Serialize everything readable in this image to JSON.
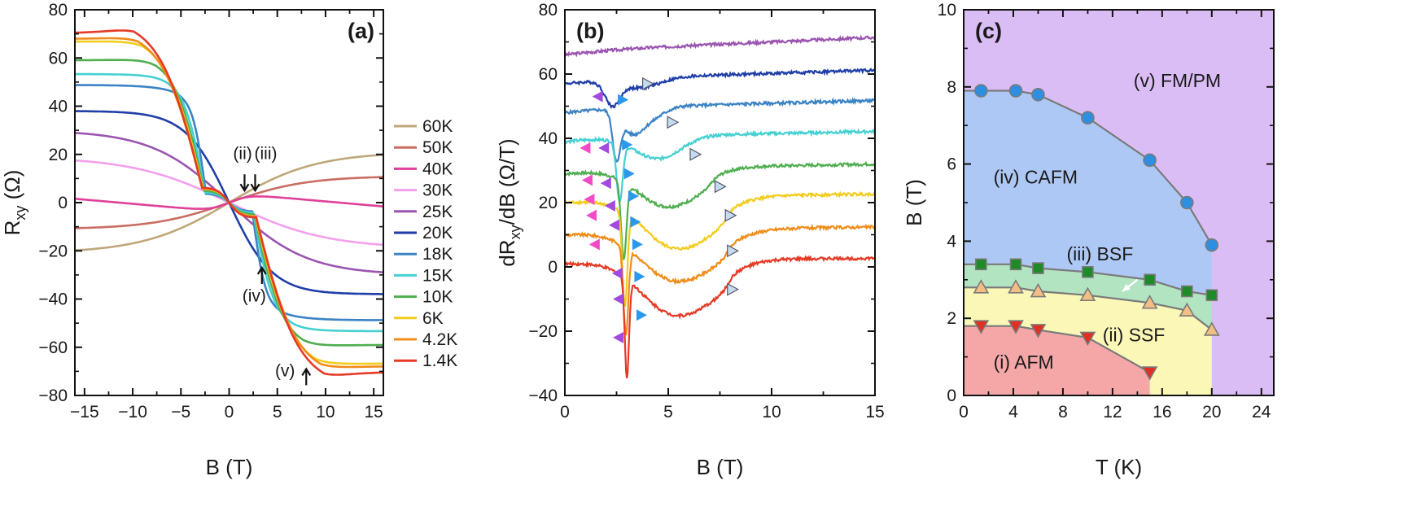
{
  "panels": [
    {
      "label": "(a)",
      "type": "line",
      "xlabel": "B (T)",
      "ylabel_main": "R",
      "ylabel_sub": "xy",
      "ylabel_unit": " (Ω)",
      "xlim": [
        -16,
        16
      ],
      "ylim": [
        -80,
        80
      ],
      "xticks": [
        -15,
        -10,
        -5,
        0,
        5,
        10,
        15
      ],
      "xtick_labels": [
        "−15",
        "−10",
        "−5",
        "0",
        "5",
        "10",
        "15"
      ],
      "yticks": [
        -80,
        -60,
        -40,
        -20,
        0,
        20,
        40,
        60,
        80
      ],
      "ytick_labels": [
        "−80",
        "−60",
        "−40",
        "−20",
        "0",
        "20",
        "40",
        "60",
        "80"
      ],
      "series": [
        {
          "name": "60K",
          "color": "#bfa77a",
          "kind": "smooth",
          "A": 21,
          "w": 9
        },
        {
          "name": "50K",
          "color": "#c96d62",
          "kind": "smooth",
          "A": 11,
          "w": 8
        },
        {
          "name": "40K",
          "color": "#e0409a",
          "kind": "hump",
          "A": 4,
          "w": 2
        },
        {
          "name": "30K",
          "color": "#f3a0ec",
          "kind": "smooth",
          "A": -19,
          "w": 10
        },
        {
          "name": "25K",
          "color": "#9a55b0",
          "kind": "smooth",
          "A": -30,
          "w": 8
        },
        {
          "name": "20K",
          "color": "#1f3ea8",
          "kind": "smooth",
          "A": -38,
          "w": 4.5
        },
        {
          "name": "18K",
          "color": "#3b83c4",
          "kind": "sharp",
          "Bs": 2.4,
          "Sat": 42,
          "k": 2.3,
          "end": 45
        },
        {
          "name": "15K",
          "color": "#45d0d2",
          "kind": "sharp",
          "Bs": 2.5,
          "Sat": 48,
          "k": 3.6,
          "end": 49
        },
        {
          "name": "10K",
          "color": "#4fae4f",
          "kind": "sharp",
          "Bs": 2.6,
          "Sat": 56,
          "k": 5.0,
          "end": 54
        },
        {
          "name": "6K",
          "color": "#f2cc1d",
          "kind": "sharp",
          "Bs": 2.7,
          "Sat": 64,
          "k": 6.3,
          "end": 61
        },
        {
          "name": "4.2K",
          "color": "#f08c19",
          "kind": "sharp",
          "Bs": 2.8,
          "Sat": 66,
          "k": 6.7,
          "end": 62
        },
        {
          "name": "1.4K",
          "color": "#e53a26",
          "kind": "sharp",
          "Bs": 2.8,
          "Sat": 70,
          "k": 7.1,
          "end": 64
        }
      ],
      "annotations": [
        {
          "text": "(ii)",
          "x": 1.4,
          "y": 18,
          "ax": 1.6,
          "ay": 5
        },
        {
          "text": "(iii)",
          "x": 3.8,
          "y": 18,
          "ax": 2.7,
          "ay": 5
        },
        {
          "text": "(iv)",
          "x": 2.6,
          "y": -41,
          "ax": 3.4,
          "ay": -27
        },
        {
          "text": "(v)",
          "x": 5.8,
          "y": -72,
          "ax": 8.0,
          "ay": -69
        }
      ]
    },
    {
      "label": "(b)",
      "type": "line",
      "xlabel": "B (T)",
      "ylabel_main": "dR",
      "ylabel_sub": "xy",
      "ylabel_unit": "/dB (Ω/T)",
      "xlim": [
        0,
        15
      ],
      "ylim": [
        -40,
        80
      ],
      "xticks": [
        0,
        5,
        10,
        15
      ],
      "xtick_labels": [
        "0",
        "5",
        "10",
        "15"
      ],
      "yticks": [
        -40,
        -20,
        0,
        20,
        40,
        60,
        80
      ],
      "ytick_labels": [
        "−40",
        "−20",
        "0",
        "20",
        "40",
        "60",
        "80"
      ],
      "series": [
        {
          "name": "25K",
          "color": "#9a55b0",
          "off": 66,
          "slope": 0.28,
          "dips": []
        },
        {
          "name": "20K",
          "color": "#1f3ea8",
          "off": 57,
          "slope": 0.2,
          "dips": [
            {
              "c": 2.3,
              "d": 7,
              "w": 0.35
            },
            {
              "c": 3.6,
              "d": 3,
              "w": 1.0
            }
          ]
        },
        {
          "name": "18K",
          "color": "#3b83c4",
          "off": 48,
          "slope": 0.17,
          "dips": [
            {
              "c": 2.5,
              "d": 14,
              "w": 0.18
            },
            {
              "c": 3.2,
              "d": 6,
              "w": 0.5
            },
            {
              "c": 4.0,
              "d": 4,
              "w": 0.7
            }
          ]
        },
        {
          "name": "15K",
          "color": "#45d0d2",
          "off": 39,
          "slope": 0.13,
          "dips": [
            {
              "c": 2.65,
              "d": 18,
              "w": 0.15
            },
            {
              "c": 4.5,
              "d": 7,
              "w": 1.1
            }
          ]
        },
        {
          "name": "10K",
          "color": "#4fae4f",
          "off": 29,
          "slope": 0.12,
          "dips": [
            {
              "c": 2.85,
              "d": 24,
              "w": 0.13
            },
            {
              "c": 5.0,
              "d": 9,
              "w": 1.5
            }
          ]
        },
        {
          "name": "6K",
          "color": "#f2cc1d",
          "off": 20,
          "slope": 0.1,
          "dips": [
            {
              "c": 2.9,
              "d": 29,
              "w": 0.12
            },
            {
              "c": 5.5,
              "d": 12,
              "w": 1.7
            }
          ]
        },
        {
          "name": "4.2K",
          "color": "#f08c19",
          "off": 10,
          "slope": 0.08,
          "dips": [
            {
              "c": 2.95,
              "d": 27,
              "w": 0.12
            },
            {
              "c": 5.5,
              "d": 12,
              "w": 1.8
            }
          ]
        },
        {
          "name": "1.4K",
          "color": "#e53a26",
          "off": 1,
          "slope": 0.03,
          "dips": [
            {
              "c": 3.0,
              "d": 31,
              "w": 0.1
            },
            {
              "c": 5.5,
              "d": 13,
              "w": 1.8
            }
          ]
        }
      ],
      "markers": [
        {
          "kind": "tri-left",
          "color": "#f24bc8",
          "pts": [
            [
              1.0,
              37
            ],
            [
              1.1,
              27
            ],
            [
              1.2,
              21
            ],
            [
              1.3,
              16
            ],
            [
              1.45,
              7
            ]
          ]
        },
        {
          "kind": "tri-left",
          "color": "#a24ae0",
          "pts": [
            [
              1.6,
              53
            ],
            [
              1.9,
              37
            ],
            [
              2.0,
              26
            ],
            [
              2.2,
              19
            ],
            [
              2.4,
              13
            ],
            [
              2.55,
              -2
            ],
            [
              2.6,
              -10
            ],
            [
              2.6,
              -22
            ]
          ]
        },
        {
          "kind": "tri-right",
          "color": "#2b98ea",
          "pts": [
            [
              2.8,
              52
            ],
            [
              3.0,
              38
            ],
            [
              3.1,
              29
            ],
            [
              3.3,
              22
            ],
            [
              3.4,
              14
            ],
            [
              3.5,
              7
            ],
            [
              3.6,
              -3
            ],
            [
              3.7,
              -15
            ]
          ]
        },
        {
          "kind": "tri-right",
          "color": "#c5dcf0",
          "pts": [
            [
              4.0,
              57
            ],
            [
              5.2,
              45
            ],
            [
              6.3,
              35
            ],
            [
              7.5,
              25
            ],
            [
              8.0,
              16
            ],
            [
              8.1,
              5
            ],
            [
              8.1,
              -7
            ]
          ]
        }
      ]
    },
    {
      "label": "(c)",
      "type": "scatter",
      "xlabel": "T (K)",
      "ylabel": "B (T)",
      "xlim": [
        0,
        25
      ],
      "ylim": [
        0,
        10
      ],
      "xticks": [
        0,
        4,
        8,
        12,
        16,
        20,
        24
      ],
      "xtick_labels": [
        "0",
        "4",
        "8",
        "12",
        "16",
        "20",
        "24"
      ],
      "yticks": [
        0,
        2,
        4,
        6,
        8,
        10
      ],
      "ytick_labels": [
        "0",
        "2",
        "4",
        "6",
        "8",
        "10"
      ],
      "colors": {
        "fm": "#dbbdf5",
        "cafm": "#aec8f5",
        "bsf": "#b2e4c2",
        "ssf": "#fbf7b7",
        "afm": "#f5a7a8",
        "line": "#7a7a7a"
      },
      "series": [
        {
          "name": "CAFM boundary",
          "marker": "circle",
          "color": "#2e8fe0",
          "x": [
            1.4,
            4.2,
            6,
            10,
            15,
            18,
            20
          ],
          "y": [
            7.9,
            7.9,
            7.8,
            7.2,
            6.1,
            5.0,
            3.9
          ]
        },
        {
          "name": "BSF boundary",
          "marker": "square",
          "color": "#1e8a28",
          "x": [
            1.4,
            4.2,
            6,
            10,
            15,
            18,
            20
          ],
          "y": [
            3.4,
            3.4,
            3.3,
            3.2,
            3.0,
            2.7,
            2.6
          ]
        },
        {
          "name": "SSF boundary",
          "marker": "triangle-up",
          "color": "#f3be84",
          "x": [
            1.4,
            4.2,
            6,
            10,
            15,
            18,
            20
          ],
          "y": [
            2.8,
            2.8,
            2.7,
            2.6,
            2.4,
            2.2,
            1.7
          ]
        },
        {
          "name": "AFM boundary",
          "marker": "triangle-down",
          "color": "#e03024",
          "x": [
            1.4,
            4.2,
            6,
            10,
            15
          ],
          "y": [
            1.8,
            1.8,
            1.7,
            1.5,
            0.6
          ]
        }
      ],
      "regions": [
        {
          "text": "(v) FM/PM",
          "x": 13.7,
          "y": 8.0
        },
        {
          "text": "(iv) CAFM",
          "x": 2.4,
          "y": 5.5
        },
        {
          "text": "(iii) BSF",
          "x": 8.3,
          "y": 3.5
        },
        {
          "text": "(ii) SSF",
          "x": 11.2,
          "y": 1.4
        },
        {
          "text": "(i) AFM",
          "x": 2.4,
          "y": 0.7
        }
      ],
      "arrow": {
        "x1": 14.0,
        "y1": 3.0,
        "x2": 12.8,
        "y2": 2.7
      }
    }
  ]
}
